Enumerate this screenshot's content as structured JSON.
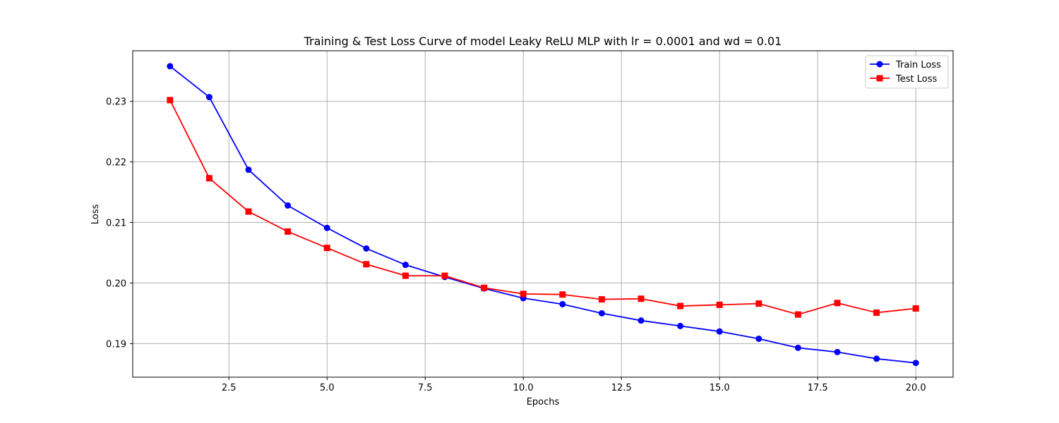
{
  "chart_data": {
    "type": "line",
    "title": "Training & Test Loss Curve of model Leaky ReLU MLP with lr = 0.0001 and wd = 0.01",
    "xlabel": "Epochs",
    "ylabel": "Loss",
    "xlim": [
      0.05,
      20.95
    ],
    "ylim": [
      0.18445,
      0.23835
    ],
    "x_ticks": [
      2.5,
      5.0,
      7.5,
      10.0,
      12.5,
      15.0,
      17.5,
      20.0
    ],
    "x_tick_labels": [
      "2.5",
      "5.0",
      "7.5",
      "10.0",
      "12.5",
      "15.0",
      "17.5",
      "20.0"
    ],
    "y_ticks": [
      0.19,
      0.2,
      0.21,
      0.22,
      0.23
    ],
    "y_tick_labels": [
      "0.19",
      "0.20",
      "0.21",
      "0.22",
      "0.23"
    ],
    "grid": true,
    "legend_position": "top-right",
    "x": [
      1,
      2,
      3,
      4,
      5,
      6,
      7,
      8,
      9,
      10,
      11,
      12,
      13,
      14,
      15,
      16,
      17,
      18,
      19,
      20
    ],
    "series": [
      {
        "name": "Train Loss",
        "color": "#0000ff",
        "marker": "circle",
        "values": [
          0.2358,
          0.2307,
          0.2187,
          0.2128,
          0.2091,
          0.2057,
          0.203,
          0.201,
          0.1991,
          0.1975,
          0.1965,
          0.195,
          0.1938,
          0.1929,
          0.192,
          0.1908,
          0.1893,
          0.1886,
          0.1875,
          0.1868
        ]
      },
      {
        "name": "Test Loss",
        "color": "#ff0000",
        "marker": "square",
        "values": [
          0.2302,
          0.2173,
          0.2118,
          0.2085,
          0.2058,
          0.2031,
          0.2012,
          0.2012,
          0.1992,
          0.1982,
          0.1981,
          0.1973,
          0.1974,
          0.1962,
          0.1964,
          0.1966,
          0.1948,
          0.1967,
          0.1951,
          0.1958
        ]
      }
    ]
  }
}
